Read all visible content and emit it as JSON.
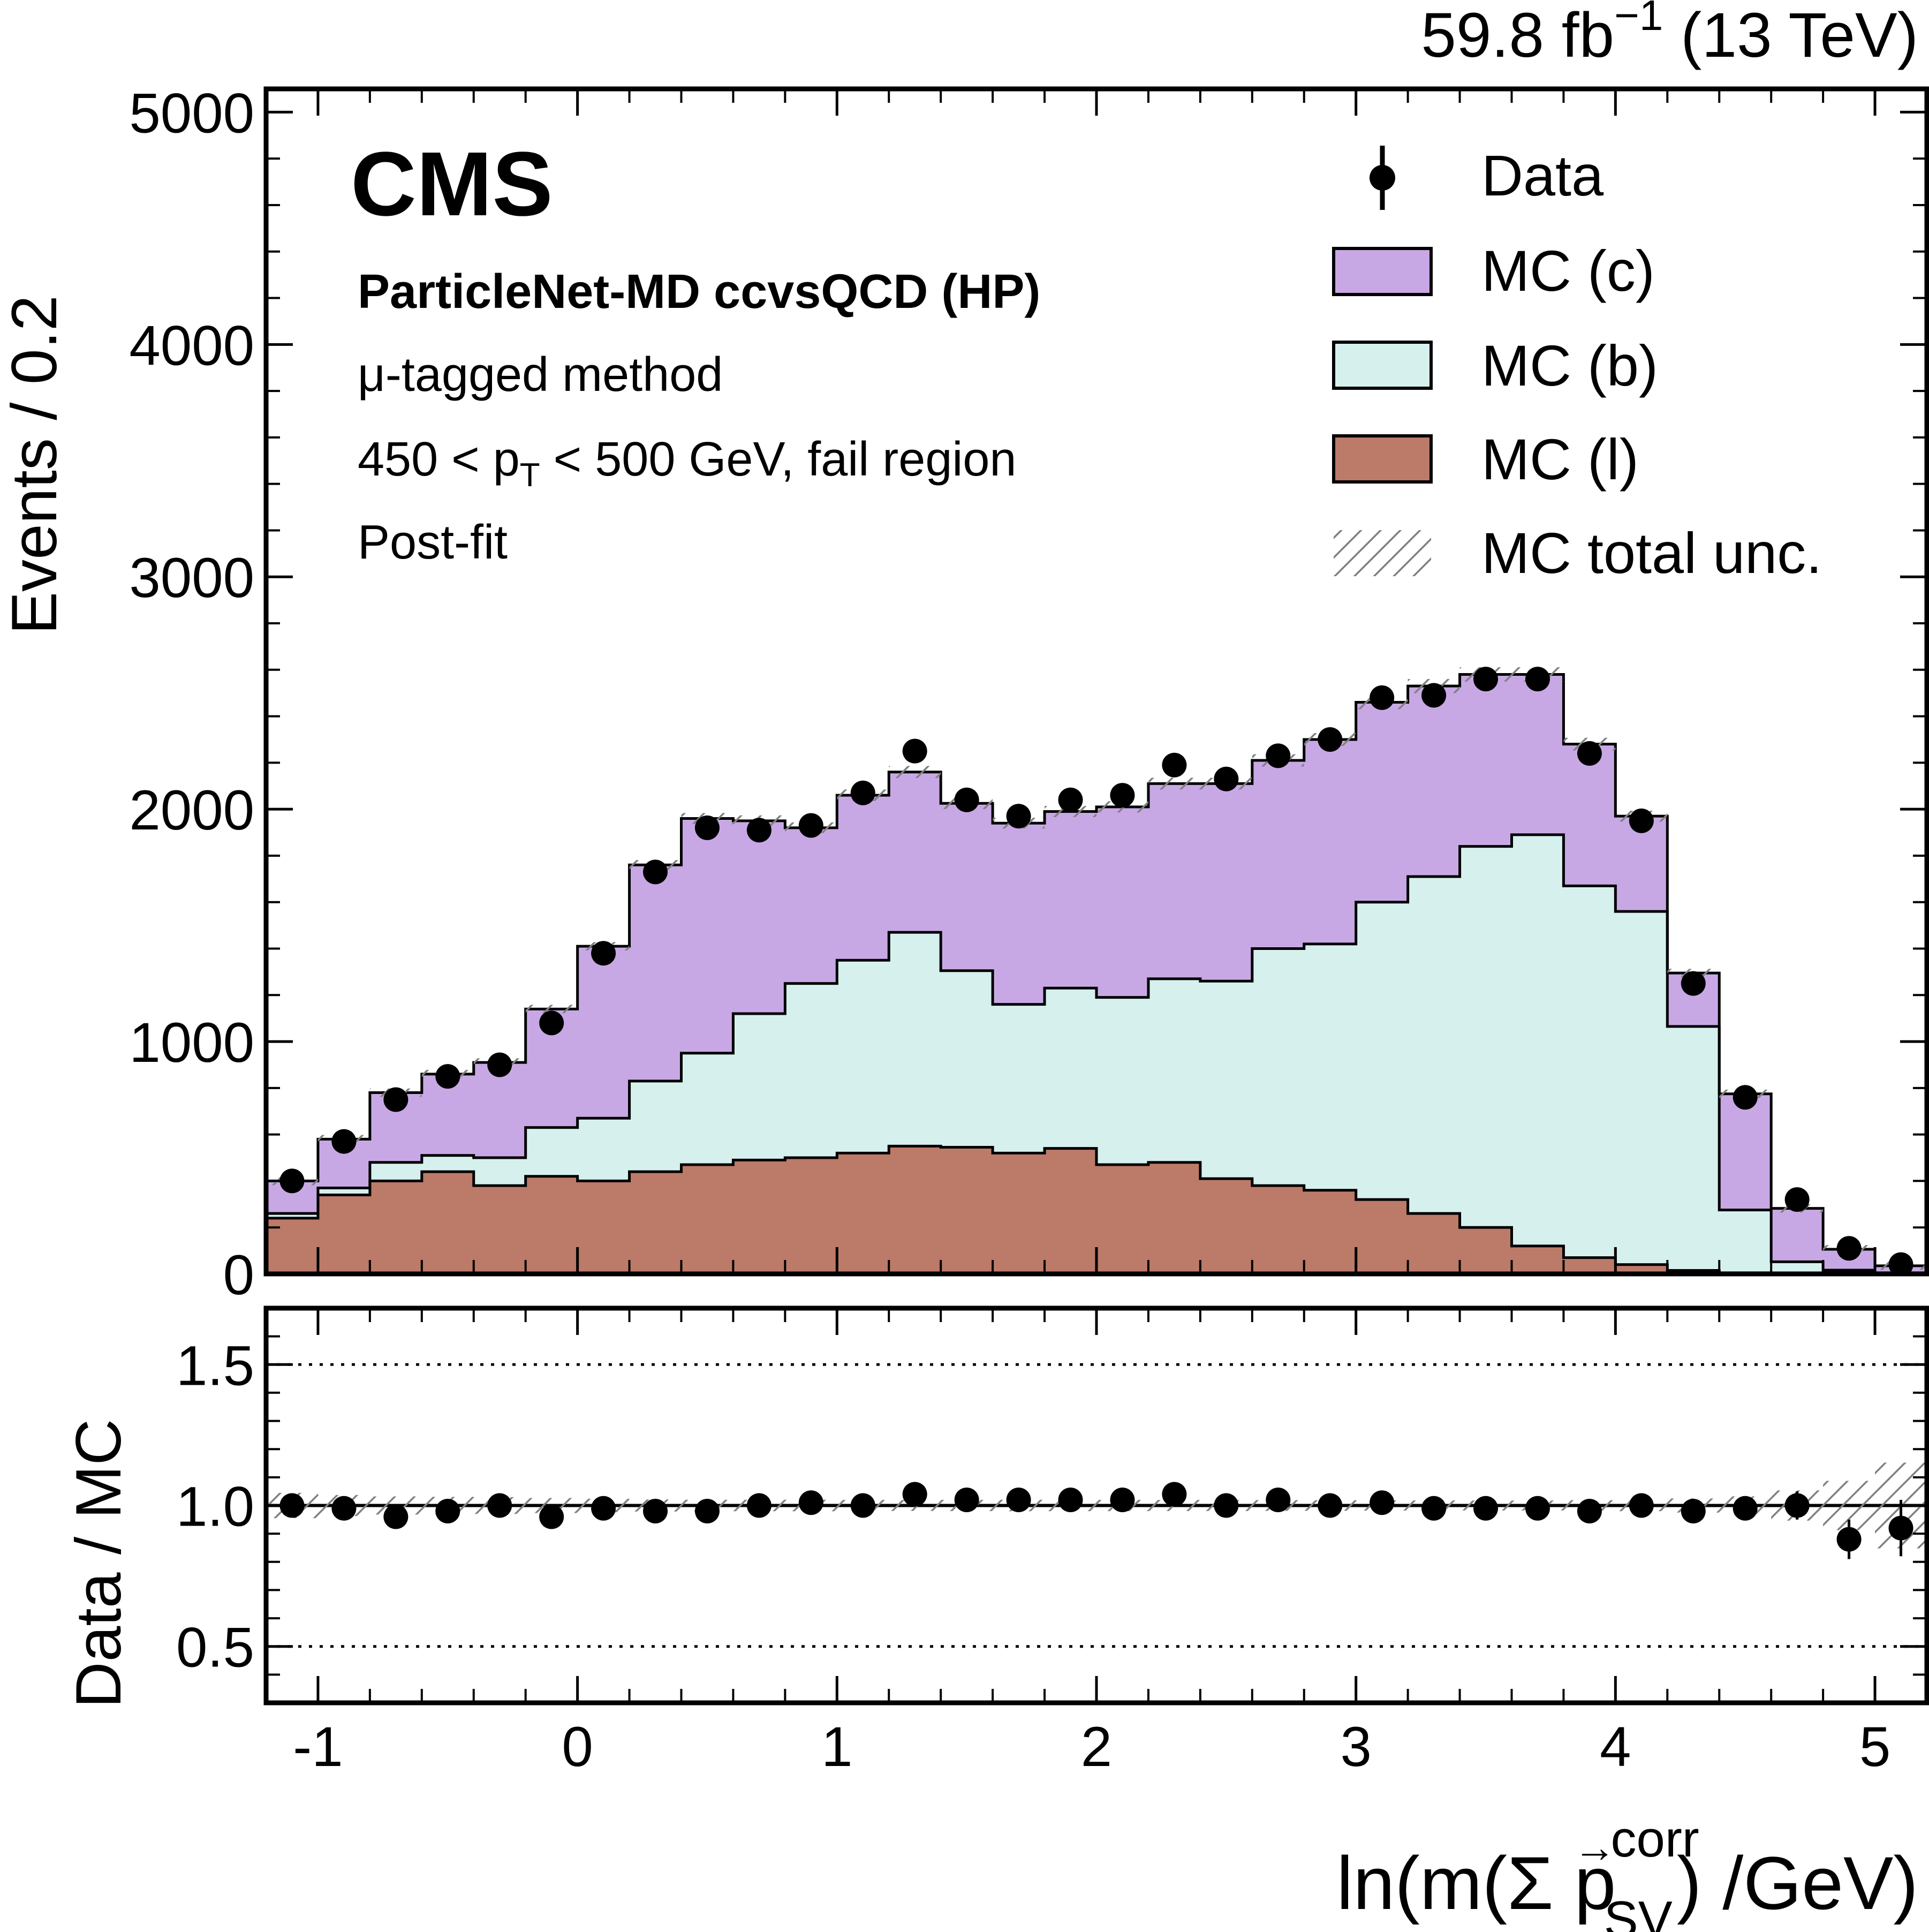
{
  "header": {
    "lumi_label": "59.8 fb",
    "lumi_sup": "−1",
    "energy_label": "(13 TeV)"
  },
  "labels": {
    "experiment": "CMS",
    "tagger": "ParticleNet-MD ccvsQCD (HP)",
    "method": "μ-tagged method",
    "pt_prefix": "450 < p",
    "pt_sub": "T",
    "pt_suffix": " < 500 GeV, fail region",
    "fit_state": "Post-fit"
  },
  "axes": {
    "ylabel_main": "Events / 0.2",
    "ylabel_ratio": "Data / MC",
    "xlabel_prefix": "ln(m(Σ ",
    "xlabel_vec": "p",
    "xlabel_arrow": "→",
    "xlabel_sup": "corr",
    "xlabel_sub": "SV",
    "xlabel_suffix": ") /GeV)"
  },
  "legend": {
    "data": "Data",
    "mc_c": "MC (c)",
    "mc_b": "MC (b)",
    "mc_l": "MC (l)",
    "mc_unc": "MC total unc."
  },
  "colors": {
    "mc_c": "#c8a8e4",
    "mc_b": "#d6f0ee",
    "mc_l": "#bc7a68",
    "line": "#000000",
    "hatch": "#808080"
  },
  "chart_data": {
    "type": "bar",
    "subtype": "stacked-histogram-with-ratio",
    "xlim": [
      -1.2,
      5.2
    ],
    "bin_width": 0.2,
    "bin_edges": [
      -1.2,
      -1.0,
      -0.8,
      -0.6,
      -0.4,
      -0.2,
      0.0,
      0.2,
      0.4,
      0.6,
      0.8,
      1.0,
      1.2,
      1.4,
      1.6,
      1.8,
      2.0,
      2.2,
      2.4,
      2.6,
      2.8,
      3.0,
      3.2,
      3.4,
      3.6,
      3.8,
      4.0,
      4.2,
      4.4,
      4.6,
      4.8,
      5.0,
      5.2
    ],
    "main": {
      "ylim": [
        0,
        5100
      ],
      "yticks": [
        0,
        1000,
        2000,
        3000,
        4000,
        5000
      ],
      "ytick_labels": [
        "0",
        "1000",
        "2000",
        "3000",
        "4000",
        "5000"
      ],
      "series": [
        {
          "name": "MC (l)",
          "values": [
            240,
            340,
            400,
            440,
            380,
            420,
            400,
            440,
            470,
            490,
            500,
            520,
            550,
            545,
            520,
            540,
            470,
            480,
            410,
            380,
            360,
            320,
            260,
            200,
            120,
            70,
            40,
            15,
            5,
            2,
            1,
            0
          ]
        },
        {
          "name": "MC (b)",
          "values": [
            20,
            30,
            80,
            70,
            120,
            210,
            270,
            390,
            480,
            630,
            750,
            830,
            920,
            760,
            640,
            690,
            720,
            790,
            850,
            1020,
            1060,
            1280,
            1450,
            1640,
            1770,
            1600,
            1520,
            1050,
            270,
            50,
            15,
            5
          ]
        },
        {
          "name": "MC (c)",
          "values": [
            140,
            210,
            300,
            350,
            410,
            510,
            740,
            930,
            1010,
            830,
            670,
            710,
            690,
            720,
            780,
            760,
            820,
            840,
            850,
            810,
            880,
            860,
            820,
            740,
            690,
            610,
            410,
            230,
            500,
            230,
            90,
            30
          ]
        }
      ],
      "data_points": [
        400,
        570,
        750,
        850,
        900,
        1080,
        1380,
        1730,
        1920,
        1910,
        1930,
        2070,
        2250,
        2040,
        1970,
        2040,
        2060,
        2190,
        2130,
        2230,
        2300,
        2480,
        2490,
        2560,
        2560,
        2240,
        1950,
        1250,
        760,
        320,
        110,
        40
      ]
    },
    "ratio": {
      "ylim": [
        0.3,
        1.7
      ],
      "yticks": [
        0.5,
        1.0,
        1.5
      ],
      "ytick_labels": [
        "0.5",
        "1.0",
        "1.5"
      ],
      "reference_lines": [
        0.5,
        1.0,
        1.5
      ],
      "values": [
        1.0,
        0.99,
        0.96,
        0.98,
        1.0,
        0.96,
        0.99,
        0.98,
        0.98,
        1.0,
        1.01,
        1.0,
        1.04,
        1.02,
        1.02,
        1.02,
        1.02,
        1.04,
        1.0,
        1.02,
        1.0,
        1.01,
        0.99,
        0.99,
        0.99,
        0.98,
        1.0,
        0.98,
        0.99,
        1.0,
        0.88,
        0.92
      ],
      "errors": [
        0.03,
        0.02,
        0.02,
        0.02,
        0.02,
        0.02,
        0.02,
        0.02,
        0.02,
        0.02,
        0.02,
        0.02,
        0.02,
        0.02,
        0.02,
        0.02,
        0.02,
        0.02,
        0.02,
        0.02,
        0.02,
        0.02,
        0.02,
        0.02,
        0.02,
        0.02,
        0.02,
        0.02,
        0.03,
        0.05,
        0.07,
        0.1
      ]
    },
    "xticks": [
      -1,
      0,
      1,
      2,
      3,
      4,
      5
    ],
    "xtick_labels": [
      "-1",
      "0",
      "1",
      "2",
      "3",
      "4",
      "5"
    ]
  }
}
